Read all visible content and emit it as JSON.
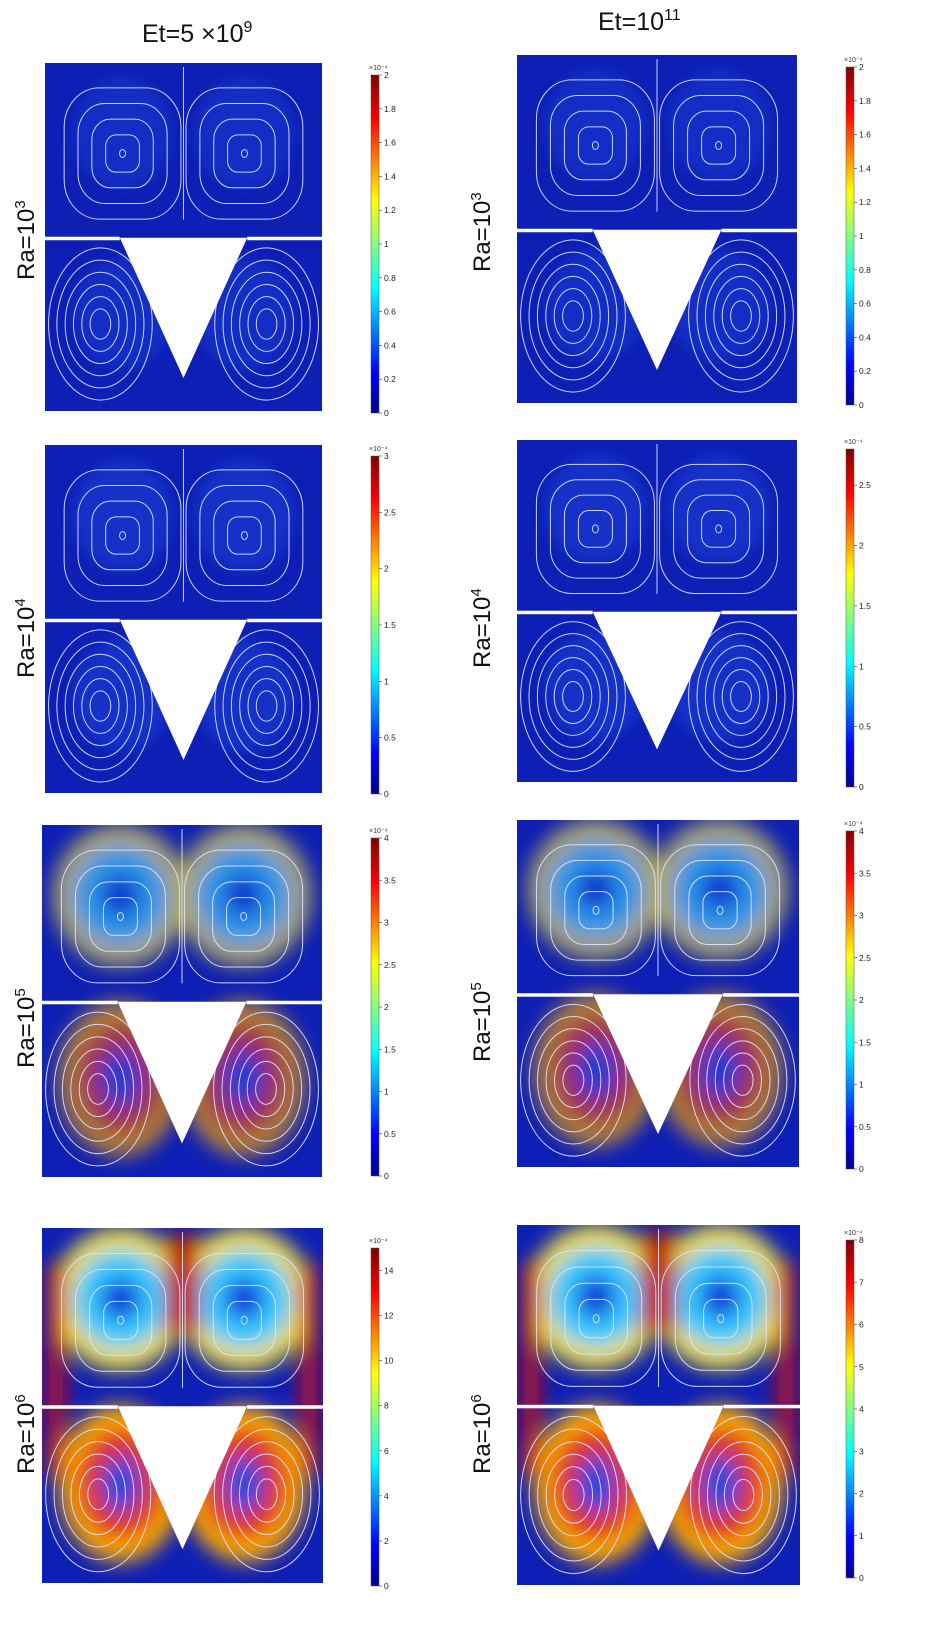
{
  "columns": [
    {
      "base": "Et=5 ×10",
      "sup": "9"
    },
    {
      "base": "Et=10",
      "sup": "11"
    }
  ],
  "rows": [
    {
      "base": "Ra=10",
      "sup": "3"
    },
    {
      "base": "Ra=10",
      "sup": "4"
    },
    {
      "base": "Ra=10",
      "sup": "5"
    },
    {
      "base": "Ra=10",
      "sup": "6"
    }
  ],
  "colorbar_exponent": "×10⁻⁴",
  "colormap": [
    "#00008f",
    "#0000ff",
    "#0080ff",
    "#00ffff",
    "#80ff80",
    "#ffff00",
    "#ff8000",
    "#ff0000",
    "#800000"
  ],
  "panels": [
    {
      "row": 0,
      "col": 0,
      "max": 2,
      "ticks": [
        "0",
        "0.2",
        "0.4",
        "0.6",
        "0.8",
        "1",
        "1.2",
        "1.4",
        "1.6",
        "1.8",
        "2"
      ],
      "intensity": 0.06
    },
    {
      "row": 0,
      "col": 1,
      "max": 2,
      "ticks": [
        "0",
        "0.2",
        "0.4",
        "0.6",
        "0.8",
        "1",
        "1.2",
        "1.4",
        "1.6",
        "1.8",
        "2"
      ],
      "intensity": 0.06
    },
    {
      "row": 1,
      "col": 0,
      "max": 3,
      "ticks": [
        "0",
        "0.5",
        "1",
        "1.5",
        "2",
        "2.5",
        "3"
      ],
      "intensity": 0.12
    },
    {
      "row": 1,
      "col": 1,
      "max": 2.8,
      "ticks": [
        "0",
        "0.5",
        "1",
        "1.5",
        "2",
        "2.5"
      ],
      "intensity": 0.12
    },
    {
      "row": 2,
      "col": 0,
      "max": 4,
      "ticks": [
        "0",
        "0.5",
        "1",
        "1.5",
        "2",
        "2.5",
        "3",
        "3.5",
        "4"
      ],
      "intensity": 0.55
    },
    {
      "row": 2,
      "col": 1,
      "max": 4,
      "ticks": [
        "0",
        "0.5",
        "1",
        "1.5",
        "2",
        "2.5",
        "3",
        "3.5",
        "4"
      ],
      "intensity": 0.55
    },
    {
      "row": 3,
      "col": 0,
      "max": 15,
      "ticks": [
        "0",
        "2",
        "4",
        "6",
        "8",
        "10",
        "12",
        "14"
      ],
      "intensity": 0.85
    },
    {
      "row": 3,
      "col": 1,
      "max": 8,
      "ticks": [
        "0",
        "1",
        "2",
        "3",
        "4",
        "5",
        "6",
        "7",
        "8"
      ],
      "intensity": 0.85
    }
  ]
}
